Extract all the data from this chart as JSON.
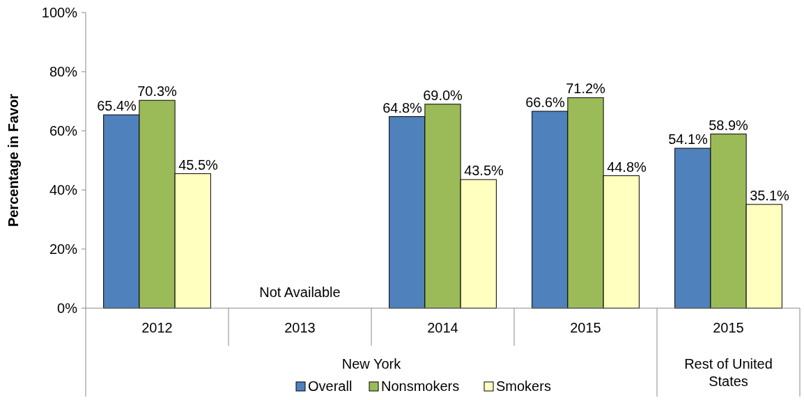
{
  "chart_data": {
    "type": "bar",
    "ylabel": "Percentage in Favor",
    "categories": [
      "2012",
      "2013",
      "2014",
      "2015",
      "2015"
    ],
    "series": [
      {
        "name": "Overall",
        "color": "#4f81bd",
        "values": [
          65.4,
          null,
          64.8,
          66.6,
          54.1
        ],
        "value_labels": [
          "65.4%",
          null,
          "64.8%",
          "66.6%",
          "54.1%"
        ]
      },
      {
        "name": "Nonsmokers",
        "color": "#9bbb59",
        "values": [
          70.3,
          null,
          69.0,
          71.2,
          58.9
        ],
        "value_labels": [
          "70.3%",
          null,
          "69.0%",
          "71.2%",
          "58.9%"
        ]
      },
      {
        "name": "Smokers",
        "color": "#ffffc0",
        "values": [
          45.5,
          null,
          43.5,
          44.8,
          35.1
        ],
        "value_labels": [
          "45.5%",
          null,
          "43.5%",
          "44.8%",
          "35.1%"
        ]
      }
    ],
    "ylim": [
      0,
      100
    ],
    "yticks": [
      {
        "value": 0,
        "label": "0%"
      },
      {
        "value": 20,
        "label": "20%"
      },
      {
        "value": 40,
        "label": "40%"
      },
      {
        "value": 60,
        "label": "60%"
      },
      {
        "value": 80,
        "label": "80%"
      },
      {
        "value": 100,
        "label": "100%"
      }
    ],
    "annotations": [
      "Not Available",
      "New York",
      "Rest of United States"
    ],
    "legend": "bottom",
    "grid": false
  }
}
